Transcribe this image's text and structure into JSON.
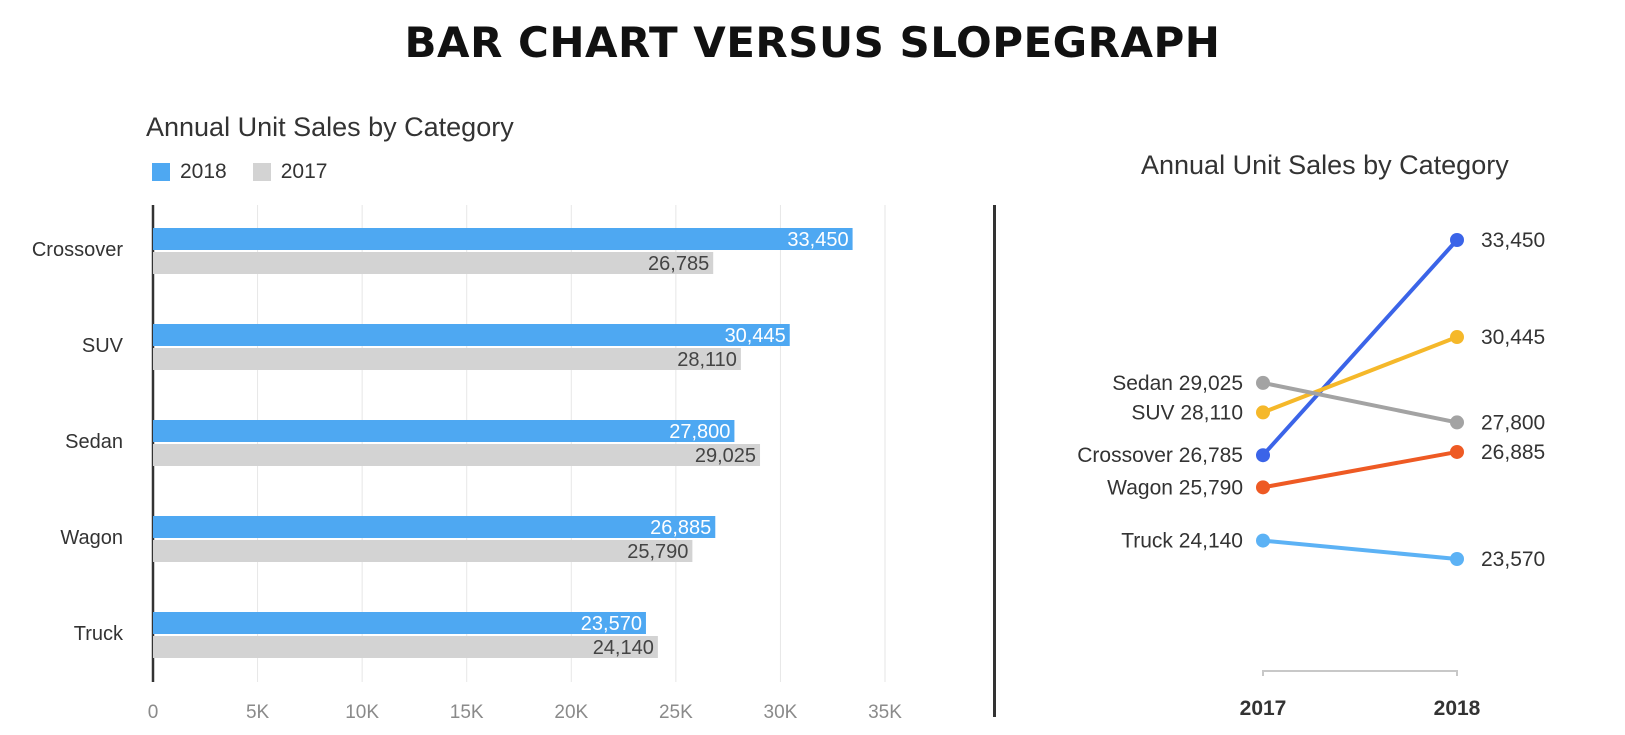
{
  "title": "BAR CHART VERSUS SLOPEGRAPH",
  "chart_data": [
    {
      "type": "bar",
      "orientation": "horizontal",
      "title": "Annual Unit Sales by Category",
      "categories": [
        "Crossover",
        "SUV",
        "Sedan",
        "Wagon",
        "Truck"
      ],
      "series": [
        {
          "name": "2018",
          "values": [
            33450,
            30445,
            27800,
            26885,
            23570
          ],
          "color": "#4ea8f2",
          "labels": [
            "33,450",
            "30,445",
            "27,800",
            "26,885",
            "23,570"
          ]
        },
        {
          "name": "2017",
          "values": [
            26785,
            28110,
            29025,
            25790,
            24140
          ],
          "color": "#d3d3d3",
          "labels": [
            "26,785",
            "28,110",
            "29,025",
            "25,790",
            "24,140"
          ]
        }
      ],
      "xlim": [
        0,
        35000
      ],
      "x_ticks": [
        0,
        5000,
        10000,
        15000,
        20000,
        25000,
        30000,
        35000
      ],
      "x_tick_labels": [
        "0",
        "5K",
        "10K",
        "15K",
        "20K",
        "25K",
        "30K",
        "35K"
      ],
      "grid": true,
      "legend": "top-left"
    },
    {
      "type": "line",
      "subtype": "slopegraph",
      "title": "Annual Unit Sales by Category",
      "x": [
        "2017",
        "2018"
      ],
      "series": [
        {
          "name": "Crossover",
          "values": [
            26785,
            33450
          ],
          "color": "#3b64e8",
          "labels": [
            "Crossover 26,785",
            "33,450"
          ]
        },
        {
          "name": "SUV",
          "values": [
            28110,
            30445
          ],
          "color": "#f5b82a",
          "labels": [
            "SUV 28,110",
            "30,445"
          ]
        },
        {
          "name": "Sedan",
          "values": [
            29025,
            27800
          ],
          "color": "#a3a3a3",
          "labels": [
            "Sedan 29,025",
            "27,800"
          ]
        },
        {
          "name": "Wagon",
          "values": [
            25790,
            26885
          ],
          "color": "#ee5a24",
          "labels": [
            "Wagon 25,790",
            "26,885"
          ]
        },
        {
          "name": "Truck",
          "values": [
            24140,
            23570
          ],
          "color": "#5cb2f5",
          "labels": [
            "Truck 24,140",
            "23,570"
          ]
        }
      ],
      "ylim": [
        23000,
        34000
      ]
    }
  ]
}
